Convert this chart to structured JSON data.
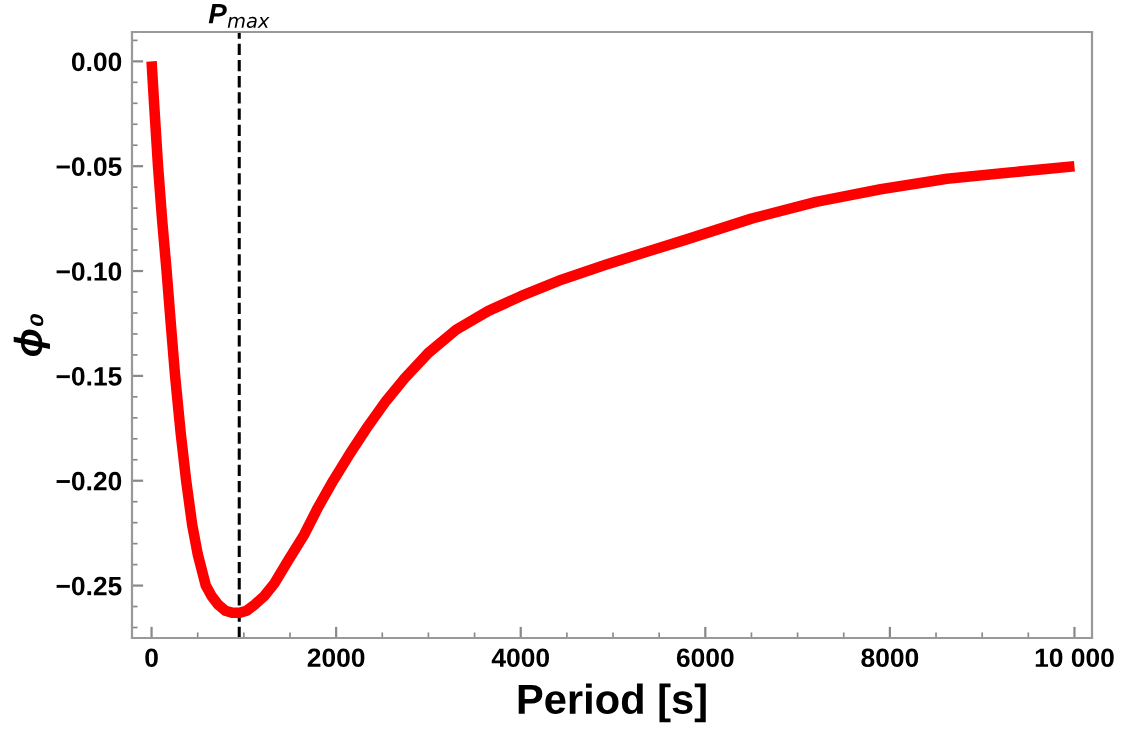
{
  "chart_data": {
    "type": "line",
    "xlabel": "Period [s]",
    "ylabel": "ϕ₀",
    "series": [
      {
        "color": "#ff0000",
        "x": [
          0,
          30,
          70,
          115,
          163,
          210,
          255,
          315,
          375,
          440,
          500,
          588,
          650,
          720,
          800,
          880,
          950,
          1030,
          1120,
          1220,
          1330,
          1480,
          1650,
          1800,
          1968,
          2150,
          2345,
          2540,
          2745,
          3000,
          3300,
          3650,
          4000,
          4450,
          4920,
          5350,
          5790,
          6500,
          7200,
          7900,
          8620,
          9300,
          10000
        ],
        "values": [
          0,
          -0.022,
          -0.05,
          -0.076,
          -0.1,
          -0.126,
          -0.15,
          -0.177,
          -0.2,
          -0.221,
          -0.235,
          -0.25,
          -0.255,
          -0.259,
          -0.262,
          -0.263,
          -0.263,
          -0.262,
          -0.259,
          -0.255,
          -0.249,
          -0.238,
          -0.226,
          -0.213,
          -0.2,
          -0.187,
          -0.174,
          -0.162,
          -0.151,
          -0.139,
          -0.128,
          -0.119,
          -0.112,
          -0.104,
          -0.097,
          -0.091,
          -0.085,
          -0.075,
          -0.067,
          -0.061,
          -0.056,
          -0.053,
          -0.05
        ]
      }
    ],
    "xlim": [
      -212,
      10190
    ],
    "ylim": [
      -0.275,
      0.014
    ],
    "xticks": [
      0,
      2000,
      4000,
      6000,
      8000,
      {
        "value": 10000,
        "label": "10 000"
      }
    ],
    "yticks": [
      {
        "value": 0,
        "label": "0.00"
      },
      {
        "value": -0.05,
        "label": "−0.05"
      },
      {
        "value": -0.1,
        "label": "−0.10"
      },
      {
        "value": -0.15,
        "label": "−0.15"
      },
      {
        "value": -0.2,
        "label": "−0.20"
      },
      {
        "value": -0.25,
        "label": "−0.25"
      }
    ],
    "ref_lines": [
      {
        "axis": "x",
        "value": 950,
        "label": "P$_{max}$",
        "color": "#000000",
        "line_style": "dashed"
      }
    ],
    "grid": false,
    "legend": false,
    "marker": "none",
    "line_style": "solid"
  }
}
